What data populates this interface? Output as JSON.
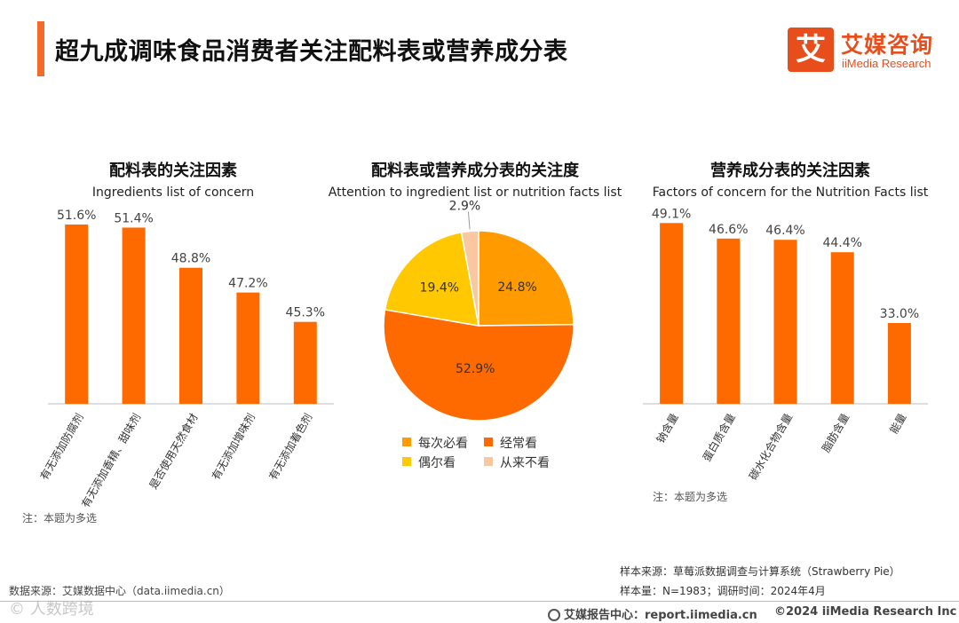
{
  "header": {
    "title": "超九成调味食品消费者关注配料表或营养成分表",
    "logo_mark": "艾",
    "logo_cn": "艾媒咨询",
    "logo_en": "iiMedia Research"
  },
  "notes": {
    "left": "注：本题为多选",
    "right": "注：本题为多选"
  },
  "footer": {
    "data_source": "数据来源：艾媒数据中心（data.iimedia.cn）",
    "sample_source": "样本来源：草莓派数据调查与计算系统（Strawberry Pie）",
    "sample_size": "样本量：N=1983；调研时间：2024年4月",
    "report_center": "艾媒报告中心：report.iimedia.cn",
    "copyright": "©2024  iiMedia Research Inc",
    "watermark": "© 人数跨境"
  },
  "colors": {
    "bar": "#ff6a00",
    "pie_every": "#ff9a00",
    "pie_often": "#ff6a00",
    "pie_sometimes": "#ffc800",
    "pie_never": "#f9c7a0",
    "accent": "#f26b2a"
  },
  "chart_data": [
    {
      "type": "bar",
      "title": "配料表的关注因素",
      "subtitle": "Ingredients list of concern",
      "categories": [
        "有无添加防腐剂",
        "有无添加香精、甜味剂",
        "是否使用天然食材",
        "有无添加增味剂",
        "有无添加着色剂"
      ],
      "values": [
        51.6,
        51.4,
        48.8,
        47.2,
        45.3
      ],
      "value_labels": [
        "51.6%",
        "51.4%",
        "48.8%",
        "47.2%",
        "45.3%"
      ],
      "ylim": [
        40,
        52
      ]
    },
    {
      "type": "pie",
      "title": "配料表或营养成分表的关注度",
      "subtitle": "Attention to ingredient list or nutrition facts list",
      "categories": [
        "每次必看",
        "经常看",
        "偶尔看",
        "从来不看"
      ],
      "values": [
        24.8,
        52.9,
        19.4,
        2.9
      ],
      "value_labels": [
        "24.8%",
        "52.9%",
        "19.4%",
        "2.9%"
      ]
    },
    {
      "type": "bar",
      "title": "营养成分表的关注因素",
      "subtitle": "Factors of concern for the Nutrition Facts list",
      "categories": [
        "钠含量",
        "蛋白质含量",
        "碳水化合物含量",
        "脂肪含量",
        "能量"
      ],
      "values": [
        49.1,
        46.6,
        46.4,
        44.4,
        33.0
      ],
      "value_labels": [
        "49.1%",
        "46.6%",
        "46.4%",
        "44.4%",
        "33.0%"
      ],
      "ylim": [
        20,
        50
      ]
    }
  ]
}
